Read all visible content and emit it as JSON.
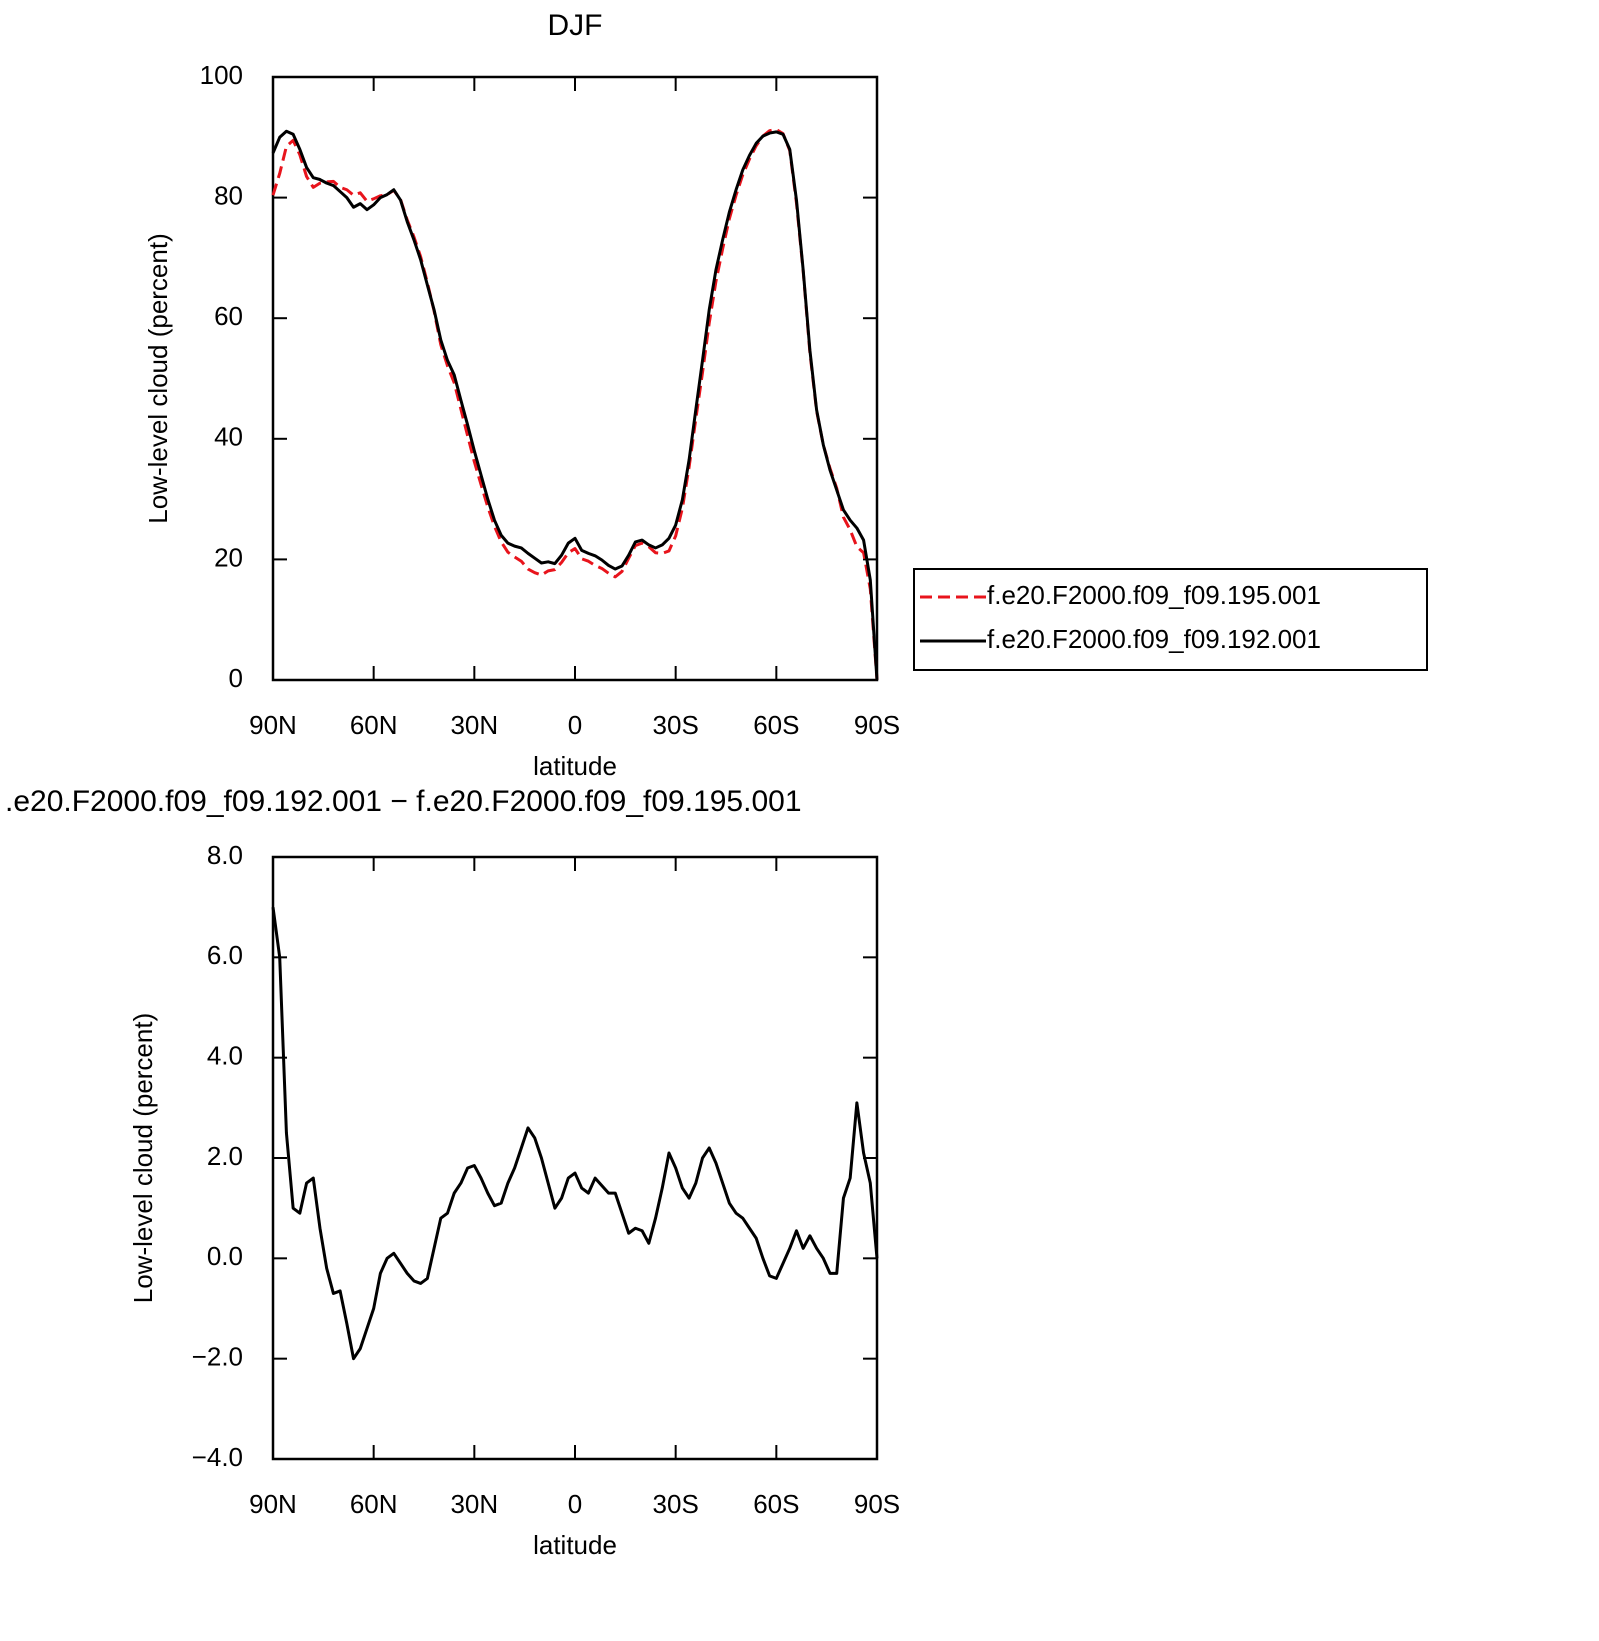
{
  "chart_data": [
    {
      "type": "line",
      "title": "DJF",
      "xlabel": "latitude",
      "ylabel": "Low-level cloud (percent)",
      "x": [
        90,
        88,
        86,
        84,
        82,
        80,
        78,
        76,
        74,
        72,
        70,
        68,
        66,
        64,
        62,
        60,
        58,
        56,
        54,
        52,
        50,
        48,
        46,
        44,
        42,
        40,
        38,
        36,
        34,
        32,
        30,
        28,
        26,
        24,
        22,
        20,
        18,
        16,
        14,
        12,
        10,
        8,
        6,
        4,
        2,
        0,
        -2,
        -4,
        -6,
        -8,
        -10,
        -12,
        -14,
        -16,
        -18,
        -20,
        -22,
        -24,
        -26,
        -28,
        -30,
        -32,
        -34,
        -36,
        -38,
        -40,
        -42,
        -44,
        -46,
        -48,
        -50,
        -52,
        -54,
        -56,
        -58,
        -60,
        -62,
        -64,
        -66,
        -68,
        -70,
        -72,
        -74,
        -76,
        -78,
        -80,
        -82,
        -84,
        -86,
        -88,
        -90
      ],
      "series": [
        {
          "name": "f.e20.F2000.f09_f09.195.001",
          "color": "#e8141c",
          "dashed": true,
          "values": [
            80.4,
            84,
            88.5,
            89.5,
            87.1,
            83.5,
            81.7,
            82.4,
            82.6,
            82.7,
            81.7,
            81.3,
            80.4,
            80.8,
            79.4,
            79.8,
            80.3,
            80.5,
            81.2,
            79.7,
            76.3,
            73.5,
            70.2,
            65.9,
            61.2,
            55.6,
            52.1,
            49.3,
            44.9,
            40.5,
            36.2,
            32.4,
            28.7,
            25.5,
            22.9,
            21.2,
            20.4,
            19.7,
            18.4,
            17.8,
            17.4,
            18.1,
            18.3,
            19.5,
            21.1,
            21.8,
            20.1,
            19.7,
            19,
            18.5,
            17.7,
            17.1,
            18,
            20.2,
            22.3,
            22.7,
            22.1,
            21.1,
            21,
            21.4,
            23.9,
            28.5,
            35.3,
            43.3,
            51,
            59.2,
            66.1,
            71.5,
            76.5,
            80.4,
            83.8,
            86.4,
            88.6,
            90.2,
            91.1,
            91.3,
            90.6,
            87.8,
            79.1,
            67.8,
            54.3,
            44.6,
            39,
            35.1,
            31.8,
            27,
            24.9,
            22.1,
            21.1,
            15.1,
            0
          ]
        },
        {
          "name": "f.e20.F2000.f09_f09.192.001",
          "color": "#000000",
          "dashed": false,
          "values": [
            87.4,
            90,
            91,
            90.5,
            88,
            85,
            83.3,
            83,
            82.4,
            82,
            81,
            80,
            78.4,
            79,
            78,
            78.8,
            80,
            80.5,
            81.3,
            79.6,
            76,
            73,
            69.7,
            65.5,
            61.4,
            56.4,
            53,
            50.6,
            46.4,
            42.3,
            38,
            34,
            30,
            26.5,
            24,
            22.7,
            22.2,
            21.9,
            21,
            20.2,
            19.4,
            19.6,
            19.3,
            20.7,
            22.7,
            23.5,
            21.5,
            21,
            20.6,
            19.9,
            19,
            18.4,
            18.9,
            20.7,
            22.9,
            23.2,
            22.4,
            21.9,
            22.4,
            23.5,
            25.7,
            29.9,
            36.5,
            44.8,
            53,
            61.4,
            68,
            73,
            77.6,
            81.3,
            84.6,
            87,
            89,
            90.2,
            90.7,
            90.9,
            90.5,
            88,
            79.6,
            68,
            54.7,
            44.8,
            39,
            34.8,
            31.5,
            28.2,
            26.5,
            25.2,
            23.2,
            16.6,
            0
          ]
        }
      ],
      "xlim": [
        90,
        -90
      ],
      "xticks": [
        {
          "value": 90,
          "label": "90N"
        },
        {
          "value": 60,
          "label": "60N"
        },
        {
          "value": 30,
          "label": "30N"
        },
        0,
        {
          "value": -30,
          "label": "30S"
        },
        {
          "value": -60,
          "label": "60S"
        },
        {
          "value": -90,
          "label": "90S"
        }
      ],
      "ylim": [
        0,
        100
      ],
      "yticks": [
        0,
        20,
        40,
        60,
        80,
        100
      ],
      "legend": "outside-right"
    },
    {
      "type": "line",
      "title": ".e20.F2000.f09_f09.192.001 − f.e20.F2000.f09_f09.195.001",
      "xlabel": "latitude",
      "ylabel": "Low-level cloud (percent)",
      "x": [
        90,
        88,
        86,
        84,
        82,
        80,
        78,
        76,
        74,
        72,
        70,
        68,
        66,
        64,
        62,
        60,
        58,
        56,
        54,
        52,
        50,
        48,
        46,
        44,
        42,
        40,
        38,
        36,
        34,
        32,
        30,
        28,
        26,
        24,
        22,
        20,
        18,
        16,
        14,
        12,
        10,
        8,
        6,
        4,
        2,
        0,
        -2,
        -4,
        -6,
        -8,
        -10,
        -12,
        -14,
        -16,
        -18,
        -20,
        -22,
        -24,
        -26,
        -28,
        -30,
        -32,
        -34,
        -36,
        -38,
        -40,
        -42,
        -44,
        -46,
        -48,
        -50,
        -52,
        -54,
        -56,
        -58,
        -60,
        -62,
        -64,
        -66,
        -68,
        -70,
        -72,
        -74,
        -76,
        -78,
        -80,
        -82,
        -84,
        -86,
        -88,
        -90
      ],
      "series": [
        {
          "color": "#000000",
          "dashed": false,
          "values": [
            7,
            6,
            2.5,
            1,
            0.9,
            1.5,
            1.6,
            0.6,
            -0.2,
            -0.7,
            -0.65,
            -1.3,
            -2,
            -1.8,
            -1.4,
            -1,
            -0.3,
            0,
            0.1,
            -0.1,
            -0.3,
            -0.45,
            -0.5,
            -0.4,
            0.2,
            0.8,
            0.9,
            1.3,
            1.5,
            1.8,
            1.85,
            1.6,
            1.3,
            1.05,
            1.1,
            1.5,
            1.8,
            2.2,
            2.6,
            2.4,
            2,
            1.5,
            1,
            1.2,
            1.6,
            1.7,
            1.4,
            1.3,
            1.6,
            1.45,
            1.3,
            1.3,
            0.9,
            0.5,
            0.6,
            0.55,
            0.3,
            0.8,
            1.4,
            2.1,
            1.8,
            1.4,
            1.2,
            1.5,
            2,
            2.2,
            1.9,
            1.5,
            1.1,
            0.9,
            0.8,
            0.6,
            0.4,
            0,
            -0.35,
            -0.4,
            -0.1,
            0.2,
            0.55,
            0.2,
            0.45,
            0.2,
            0,
            -0.3,
            -0.3,
            1.2,
            1.6,
            3.1,
            2.1,
            1.5,
            0
          ]
        }
      ],
      "xlim": [
        90,
        -90
      ],
      "xticks": [
        {
          "value": 90,
          "label": "90N"
        },
        {
          "value": 60,
          "label": "60N"
        },
        {
          "value": 30,
          "label": "30N"
        },
        0,
        {
          "value": -30,
          "label": "30S"
        },
        {
          "value": -60,
          "label": "60S"
        },
        {
          "value": -90,
          "label": "90S"
        }
      ],
      "ylim": [
        -4,
        8
      ],
      "yticks": [
        {
          "value": -4,
          "label": "−4.0"
        },
        {
          "value": -2,
          "label": "−2.0"
        },
        {
          "value": 0,
          "label": "0.0"
        },
        {
          "value": 2,
          "label": "2.0"
        },
        {
          "value": 4,
          "label": "4.0"
        },
        {
          "value": 6,
          "label": "6.0"
        },
        {
          "value": 8,
          "label": "8.0"
        }
      ]
    }
  ]
}
